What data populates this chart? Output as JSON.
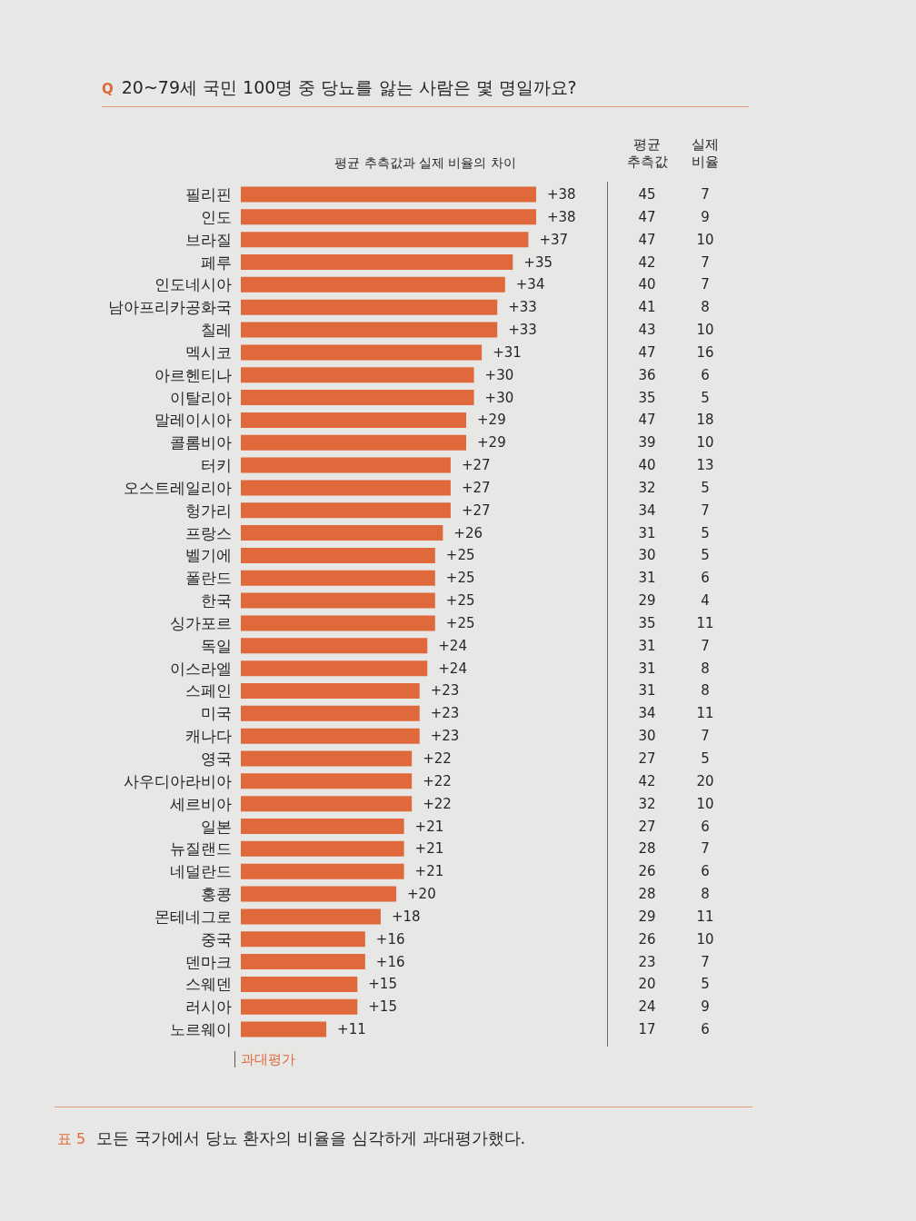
{
  "chart_data": [
    {
      "type": "bar",
      "orientation": "horizontal",
      "title": "Q 20~79세 국민 100명 중 당뇨를 앓는 사람은 몇 명일까요?",
      "subtitle": "평균 추측값과 실제 비율의 차이",
      "xlabel": "과대평가",
      "categories": [
        "필리핀",
        "인도",
        "브라질",
        "페루",
        "인도네시아",
        "남아프리카공화국",
        "칠레",
        "멕시코",
        "아르헨티나",
        "이탈리아",
        "말레이시아",
        "콜롬비아",
        "터키",
        "오스트레일리아",
        "헝가리",
        "프랑스",
        "벨기에",
        "폴란드",
        "한국",
        "싱가포르",
        "독일",
        "이스라엘",
        "스페인",
        "미국",
        "캐나다",
        "영국",
        "사우디아라비아",
        "세르비아",
        "일본",
        "뉴질랜드",
        "네덜란드",
        "홍콩",
        "몬테네그로",
        "중국",
        "덴마크",
        "스웨덴",
        "러시아",
        "노르웨이"
      ],
      "values": [
        38,
        38,
        37,
        35,
        34,
        33,
        33,
        31,
        30,
        30,
        29,
        29,
        27,
        27,
        27,
        26,
        25,
        25,
        25,
        25,
        24,
        24,
        23,
        23,
        23,
        22,
        22,
        22,
        21,
        21,
        21,
        20,
        18,
        16,
        16,
        15,
        15,
        11
      ],
      "value_labels": [
        "+38",
        "+38",
        "+37",
        "+35",
        "+34",
        "+33",
        "+33",
        "+31",
        "+30",
        "+30",
        "+29",
        "+29",
        "+27",
        "+27",
        "+27",
        "+26",
        "+25",
        "+25",
        "+25",
        "+25",
        "+24",
        "+24",
        "+23",
        "+23",
        "+23",
        "+22",
        "+22",
        "+22",
        "+21",
        "+21",
        "+21",
        "+20",
        "+18",
        "+16",
        "+16",
        "+15",
        "+15",
        "+11"
      ],
      "color": "#e0693c",
      "annotations": [
        "표 5",
        "모든 국가에서 당뇨 환자의 비율을 심각하게 과대평가했다."
      ]
    },
    {
      "type": "other",
      "title": "평균 추측값",
      "data_labels": true,
      "values": [
        45,
        47,
        47,
        42,
        40,
        41,
        43,
        47,
        36,
        35,
        47,
        39,
        40,
        32,
        34,
        31,
        30,
        31,
        29,
        35,
        31,
        31,
        31,
        34,
        30,
        27,
        42,
        32,
        27,
        28,
        26,
        28,
        29,
        26,
        23,
        20,
        24,
        17
      ]
    },
    {
      "type": "other",
      "title": "실제 비율",
      "data_labels": true,
      "values": [
        7,
        9,
        10,
        7,
        7,
        8,
        10,
        16,
        6,
        5,
        18,
        10,
        13,
        5,
        7,
        5,
        5,
        6,
        4,
        11,
        7,
        8,
        8,
        11,
        7,
        5,
        20,
        10,
        6,
        7,
        6,
        8,
        11,
        10,
        7,
        5,
        9,
        6
      ]
    }
  ]
}
